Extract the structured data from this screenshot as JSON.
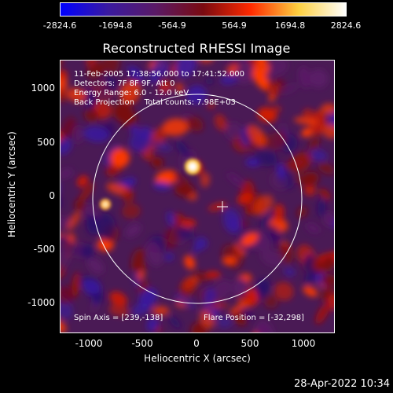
{
  "colorbar": {
    "tick_labels": [
      "-2824.6",
      "-1694.8",
      "-564.9",
      "564.9",
      "1694.8",
      "2824.6"
    ],
    "colors": [
      "#0000ff",
      "#3a1aa0",
      "#5a1a66",
      "#7a0a10",
      "#ff2a00",
      "#ffd040",
      "#ffffff"
    ]
  },
  "title": "Reconstructed RHESSI Image",
  "annotation": {
    "line1": "11-Feb-2005 17:38:56.000 to 17:41:52.000",
    "line2": "Detectors: 7F 8F 9F, Att 0",
    "line3": "Energy Range: 6.0 - 12.0 keV",
    "line4": "Back Projection    Total counts: 7.98E+03",
    "spin_axis": "Spin Axis = [239,-138]",
    "flare_position": "Flare Position = [-32,298]"
  },
  "axes": {
    "x_title": "Heliocentric X (arcsec)",
    "y_title": "Heliocentric Y (arcsec)",
    "x_ticks": [
      "-1000",
      "-500",
      "0",
      "500",
      "1000"
    ],
    "y_ticks": [
      "1000",
      "500",
      "0",
      "-500",
      "-1000"
    ]
  },
  "footer_timestamp": "28-Apr-2022 10:34",
  "colors": {
    "background": "#000000",
    "text": "#ffffff"
  }
}
